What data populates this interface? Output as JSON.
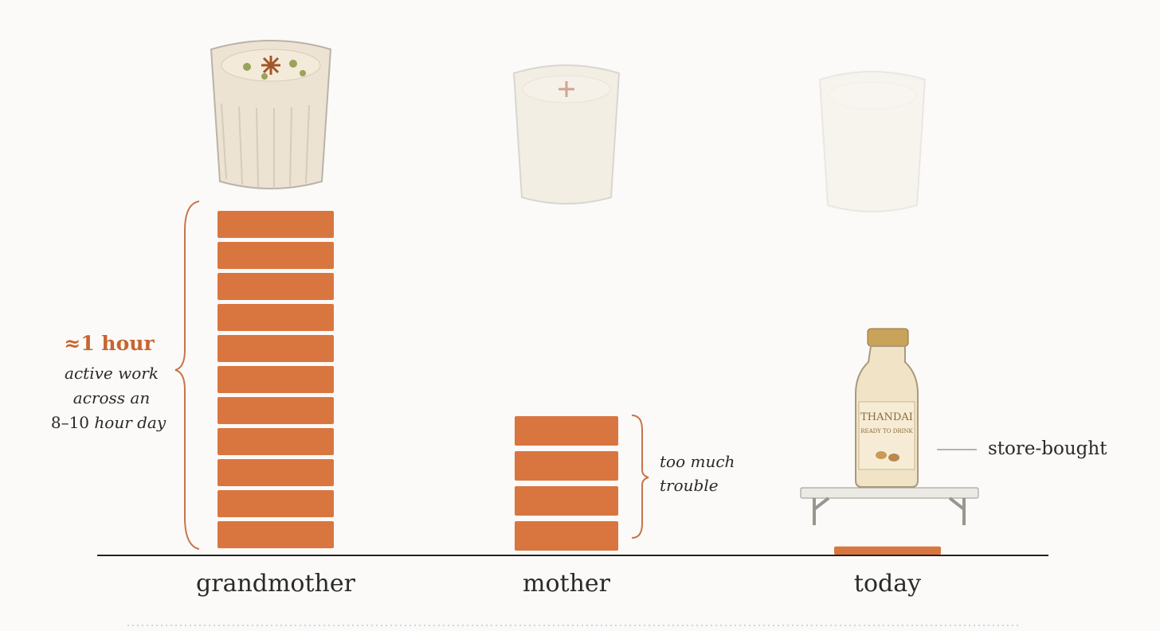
{
  "columns": [
    {
      "label": "grandmother",
      "bricks": 11
    },
    {
      "label": "mother",
      "bricks": 4
    },
    {
      "label": "today",
      "bricks": 0.3
    }
  ],
  "annotations": {
    "grandmother": {
      "headline": "≈1 hour",
      "lines": [
        "active work",
        "across an"
      ],
      "last_line": {
        "number": "8–10",
        "rest": "hour day"
      }
    },
    "mother": {
      "lines": [
        "too much",
        "trouble"
      ]
    },
    "today": {
      "label": "store-bought"
    }
  },
  "bottle": {
    "brand": "THANDAI",
    "tagline": "READY TO DRINK"
  }
}
